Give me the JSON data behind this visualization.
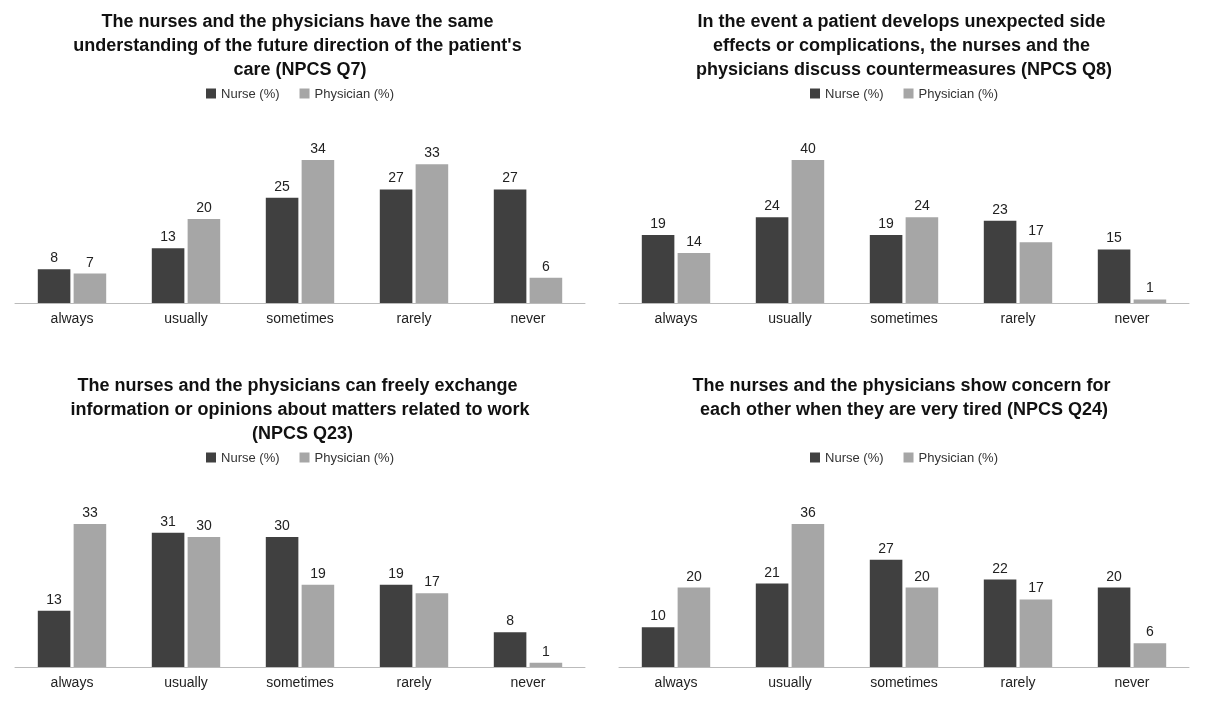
{
  "chart_data": [
    {
      "type": "bar",
      "title": "The nurses and the physicians have the same understanding of the future direction of the patient's care (NPCS Q7)",
      "categories": [
        "always",
        "usually",
        "sometimes",
        "rarely",
        "never"
      ],
      "series": [
        {
          "name": "Nurse (%)",
          "color": "#404040",
          "values": [
            8,
            13,
            25,
            27,
            27
          ]
        },
        {
          "name": "Physician (%)",
          "color": "#a6a6a6",
          "values": [
            7,
            20,
            34,
            33,
            6
          ]
        }
      ],
      "data_labels": true,
      "legend": "top"
    },
    {
      "type": "bar",
      "title": "In the event a patient develops unexpected side effects or complications, the nurses and the physicians discuss countermeasures (NPCS Q8)",
      "categories": [
        "always",
        "usually",
        "sometimes",
        "rarely",
        "never"
      ],
      "series": [
        {
          "name": "Nurse (%)",
          "color": "#404040",
          "values": [
            19,
            24,
            19,
            23,
            15
          ]
        },
        {
          "name": "Physician (%)",
          "color": "#a6a6a6",
          "values": [
            14,
            40,
            24,
            17,
            1
          ]
        }
      ],
      "data_labels": true,
      "legend": "top"
    },
    {
      "type": "bar",
      "title": "The nurses and the physicians can freely exchange information or opinions about matters related to work (NPCS Q23)",
      "categories": [
        "always",
        "usually",
        "sometimes",
        "rarely",
        "never"
      ],
      "series": [
        {
          "name": "Nurse (%)",
          "color": "#404040",
          "values": [
            13,
            31,
            30,
            19,
            8
          ]
        },
        {
          "name": "Physician (%)",
          "color": "#a6a6a6",
          "values": [
            33,
            30,
            19,
            17,
            1
          ]
        }
      ],
      "data_labels": true,
      "legend": "top"
    },
    {
      "type": "bar",
      "title": "The nurses and the physicians show concern for each other when they are very tired (NPCS Q24)",
      "categories": [
        "always",
        "usually",
        "sometimes",
        "rarely",
        "never"
      ],
      "series": [
        {
          "name": "Nurse (%)",
          "color": "#404040",
          "values": [
            10,
            21,
            27,
            22,
            20
          ]
        },
        {
          "name": "Physician (%)",
          "color": "#a6a6a6",
          "values": [
            20,
            36,
            20,
            17,
            6
          ]
        }
      ],
      "data_labels": true,
      "legend": "top"
    }
  ]
}
